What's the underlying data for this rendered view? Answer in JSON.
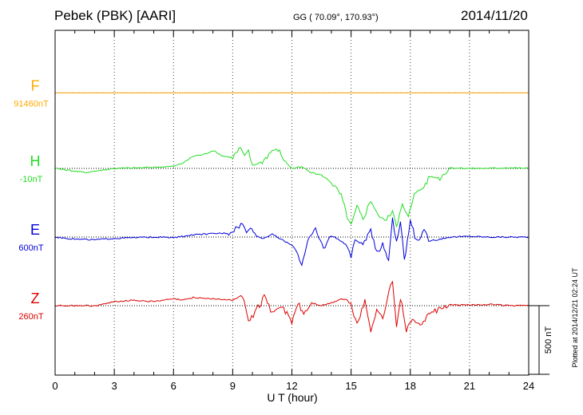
{
  "header": {
    "station": "Pebek (PBK)  [AARI]",
    "coords": "GG ( 70.09°, 170.93°)",
    "date": "2014/11/20"
  },
  "footer": {
    "plotted": "Plotted at 2014/12/21 02:24 UT",
    "scale": "500 nT"
  },
  "colors": {
    "F": "#ffaa00",
    "H": "#22dd22",
    "E": "#0000dd",
    "Z": "#dd0000"
  },
  "chart_data": {
    "type": "line",
    "title": "Pebek (PBK) [AARI] 2014/11/20",
    "xlabel": "U T (hour)",
    "xlim": [
      0,
      24
    ],
    "xticks": [
      "0",
      "3",
      "6",
      "9",
      "12",
      "15",
      "18",
      "21",
      "24"
    ],
    "scale_bar_nT": 500,
    "components": [
      {
        "name": "F",
        "base": "91460nT",
        "offset_nT": 1050,
        "x": [
          0,
          24
        ],
        "y": [
          0,
          0
        ]
      },
      {
        "name": "H",
        "base": "-10nT",
        "offset_nT": 500,
        "x": [
          0,
          1.5,
          3,
          4.5,
          6,
          6.5,
          7,
          7.5,
          8,
          8.5,
          9,
          9.4,
          9.6,
          9.8,
          10,
          10.5,
          11,
          11.3,
          11.6,
          12,
          12.5,
          13,
          13.5,
          14,
          14.5,
          14.8,
          15,
          15.3,
          15.6,
          16,
          16.4,
          16.8,
          17.1,
          17.3,
          17.6,
          17.9,
          18.2,
          18.6,
          19,
          19.5,
          20,
          21,
          22,
          23,
          24
        ],
        "y": [
          0,
          -30,
          0,
          5,
          15,
          40,
          90,
          100,
          130,
          90,
          80,
          150,
          90,
          130,
          20,
          50,
          130,
          140,
          60,
          0,
          10,
          -30,
          -50,
          -100,
          -200,
          -350,
          -420,
          -280,
          -370,
          -230,
          -350,
          -380,
          -300,
          -410,
          -270,
          -360,
          -180,
          -150,
          -60,
          -70,
          5,
          0,
          0,
          5,
          0
        ]
      },
      {
        "name": "E",
        "base": "600nT",
        "offset_nT": 0,
        "x": [
          0,
          1,
          2,
          3,
          4,
          5,
          6,
          7,
          8,
          8.8,
          9.5,
          9.7,
          9.9,
          10.2,
          10.5,
          11,
          11.5,
          12,
          12.3,
          12.5,
          12.8,
          13.2,
          13.6,
          14,
          14.5,
          14.8,
          15,
          15.2,
          15.6,
          16,
          16.3,
          16.6,
          16.9,
          17.1,
          17.3,
          17.5,
          17.7,
          18,
          18.3,
          18.7,
          19,
          20,
          21,
          22,
          23,
          24
        ],
        "y": [
          0,
          -15,
          -20,
          -10,
          -5,
          0,
          -5,
          15,
          25,
          30,
          100,
          30,
          70,
          10,
          -10,
          20,
          -20,
          -60,
          -120,
          -200,
          -20,
          50,
          -80,
          10,
          -30,
          -60,
          -150,
          -20,
          -50,
          40,
          -120,
          -50,
          -170,
          150,
          -50,
          110,
          -180,
          120,
          -30,
          40,
          -30,
          0,
          5,
          0,
          0,
          0
        ]
      },
      {
        "name": "Z",
        "base": "260nT",
        "offset_nT": -500,
        "x": [
          0,
          1,
          2,
          2.5,
          3,
          4,
          5,
          6,
          6.5,
          7,
          8,
          9,
          9.5,
          9.8,
          10.2,
          10.6,
          11,
          11.5,
          12,
          12.3,
          12.6,
          13,
          13.5,
          14,
          14.5,
          14.8,
          15,
          15.3,
          15.7,
          16,
          16.3,
          16.6,
          16.9,
          17.1,
          17.3,
          17.5,
          17.8,
          18.1,
          18.5,
          19,
          20,
          21,
          22,
          23,
          24
        ],
        "y": [
          0,
          0,
          0,
          10,
          30,
          40,
          30,
          50,
          40,
          60,
          50,
          40,
          80,
          -120,
          -30,
          60,
          -50,
          0,
          -120,
          20,
          -60,
          20,
          0,
          20,
          50,
          40,
          0,
          -130,
          30,
          -180,
          -20,
          -100,
          100,
          170,
          -150,
          60,
          -180,
          -100,
          -140,
          -60,
          5,
          5,
          10,
          0,
          0
        ]
      }
    ]
  }
}
